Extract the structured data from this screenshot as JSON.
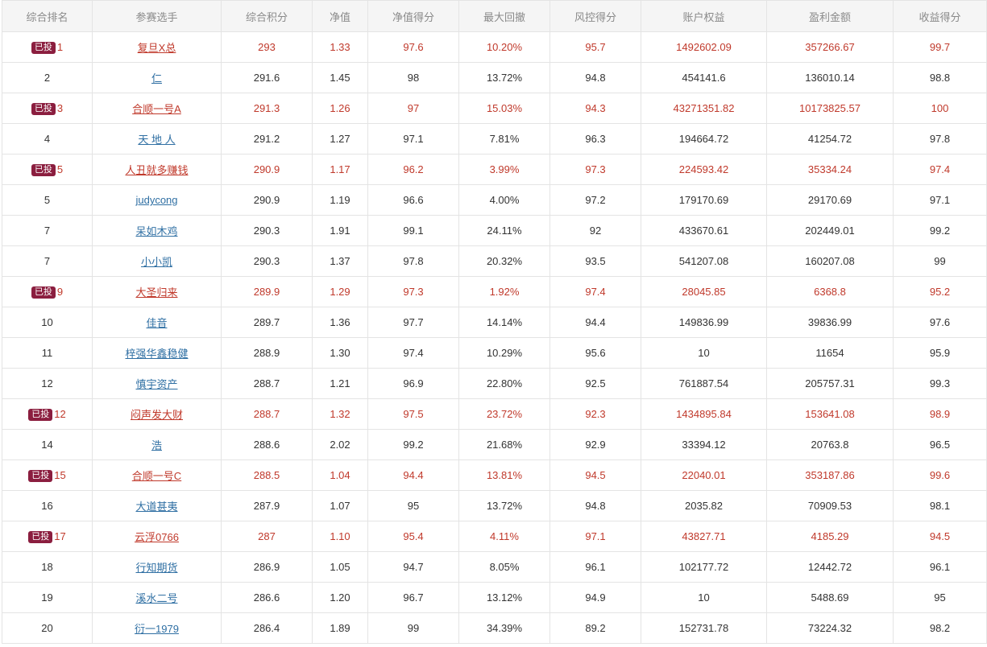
{
  "table": {
    "headers": [
      "综合排名",
      "参赛选手",
      "综合积分",
      "净值",
      "净值得分",
      "最大回撤",
      "风控得分",
      "账户权益",
      "盈利金额",
      "收益得分"
    ],
    "badge_label": "已投",
    "rows": [
      {
        "rank": "1",
        "invested": true,
        "name": "复旦X总",
        "score": "293",
        "nav": "1.33",
        "nav_score": "97.6",
        "drawdown": "10.20%",
        "risk_score": "95.7",
        "equity": "1492602.09",
        "profit": "357266.67",
        "return_score": "99.7"
      },
      {
        "rank": "2",
        "invested": false,
        "name": "仁",
        "score": "291.6",
        "nav": "1.45",
        "nav_score": "98",
        "drawdown": "13.72%",
        "risk_score": "94.8",
        "equity": "454141.6",
        "profit": "136010.14",
        "return_score": "98.8"
      },
      {
        "rank": "3",
        "invested": true,
        "name": "合顺一号A",
        "score": "291.3",
        "nav": "1.26",
        "nav_score": "97",
        "drawdown": "15.03%",
        "risk_score": "94.3",
        "equity": "43271351.82",
        "profit": "10173825.57",
        "return_score": "100"
      },
      {
        "rank": "4",
        "invested": false,
        "name": "天 地 人",
        "score": "291.2",
        "nav": "1.27",
        "nav_score": "97.1",
        "drawdown": "7.81%",
        "risk_score": "96.3",
        "equity": "194664.72",
        "profit": "41254.72",
        "return_score": "97.8"
      },
      {
        "rank": "5",
        "invested": true,
        "name": "人丑就多赚钱",
        "score": "290.9",
        "nav": "1.17",
        "nav_score": "96.2",
        "drawdown": "3.99%",
        "risk_score": "97.3",
        "equity": "224593.42",
        "profit": "35334.24",
        "return_score": "97.4"
      },
      {
        "rank": "5",
        "invested": false,
        "name": "judycong",
        "score": "290.9",
        "nav": "1.19",
        "nav_score": "96.6",
        "drawdown": "4.00%",
        "risk_score": "97.2",
        "equity": "179170.69",
        "profit": "29170.69",
        "return_score": "97.1"
      },
      {
        "rank": "7",
        "invested": false,
        "name": "呆如木鸡",
        "score": "290.3",
        "nav": "1.91",
        "nav_score": "99.1",
        "drawdown": "24.11%",
        "risk_score": "92",
        "equity": "433670.61",
        "profit": "202449.01",
        "return_score": "99.2"
      },
      {
        "rank": "7",
        "invested": false,
        "name": "小小凯",
        "score": "290.3",
        "nav": "1.37",
        "nav_score": "97.8",
        "drawdown": "20.32%",
        "risk_score": "93.5",
        "equity": "541207.08",
        "profit": "160207.08",
        "return_score": "99"
      },
      {
        "rank": "9",
        "invested": true,
        "name": "大圣归来",
        "score": "289.9",
        "nav": "1.29",
        "nav_score": "97.3",
        "drawdown": "1.92%",
        "risk_score": "97.4",
        "equity": "28045.85",
        "profit": "6368.8",
        "return_score": "95.2"
      },
      {
        "rank": "10",
        "invested": false,
        "name": "佳音",
        "score": "289.7",
        "nav": "1.36",
        "nav_score": "97.7",
        "drawdown": "14.14%",
        "risk_score": "94.4",
        "equity": "149836.99",
        "profit": "39836.99",
        "return_score": "97.6"
      },
      {
        "rank": "11",
        "invested": false,
        "name": "梓强华鑫稳健",
        "score": "288.9",
        "nav": "1.30",
        "nav_score": "97.4",
        "drawdown": "10.29%",
        "risk_score": "95.6",
        "equity": "10",
        "profit": "11654",
        "return_score": "95.9"
      },
      {
        "rank": "12",
        "invested": false,
        "name": "慎宇资产",
        "score": "288.7",
        "nav": "1.21",
        "nav_score": "96.9",
        "drawdown": "22.80%",
        "risk_score": "92.5",
        "equity": "761887.54",
        "profit": "205757.31",
        "return_score": "99.3"
      },
      {
        "rank": "12",
        "invested": true,
        "name": "闷声发大财",
        "score": "288.7",
        "nav": "1.32",
        "nav_score": "97.5",
        "drawdown": "23.72%",
        "risk_score": "92.3",
        "equity": "1434895.84",
        "profit": "153641.08",
        "return_score": "98.9"
      },
      {
        "rank": "14",
        "invested": false,
        "name": "浩",
        "score": "288.6",
        "nav": "2.02",
        "nav_score": "99.2",
        "drawdown": "21.68%",
        "risk_score": "92.9",
        "equity": "33394.12",
        "profit": "20763.8",
        "return_score": "96.5"
      },
      {
        "rank": "15",
        "invested": true,
        "name": "合顺一号C",
        "score": "288.5",
        "nav": "1.04",
        "nav_score": "94.4",
        "drawdown": "13.81%",
        "risk_score": "94.5",
        "equity": "22040.01",
        "profit": "353187.86",
        "return_score": "99.6"
      },
      {
        "rank": "16",
        "invested": false,
        "name": "大道甚夷",
        "score": "287.9",
        "nav": "1.07",
        "nav_score": "95",
        "drawdown": "13.72%",
        "risk_score": "94.8",
        "equity": "2035.82",
        "profit": "70909.53",
        "return_score": "98.1"
      },
      {
        "rank": "17",
        "invested": true,
        "name": "云浮0766",
        "score": "287",
        "nav": "1.10",
        "nav_score": "95.4",
        "drawdown": "4.11%",
        "risk_score": "97.1",
        "equity": "43827.71",
        "profit": "4185.29",
        "return_score": "94.5"
      },
      {
        "rank": "18",
        "invested": false,
        "name": "行知期货",
        "score": "286.9",
        "nav": "1.05",
        "nav_score": "94.7",
        "drawdown": "8.05%",
        "risk_score": "96.1",
        "equity": "102177.72",
        "profit": "12442.72",
        "return_score": "96.1"
      },
      {
        "rank": "19",
        "invested": false,
        "name": "溪水二号",
        "score": "286.6",
        "nav": "1.20",
        "nav_score": "96.7",
        "drawdown": "13.12%",
        "risk_score": "94.9",
        "equity": "10",
        "profit": "5488.69",
        "return_score": "95"
      },
      {
        "rank": "20",
        "invested": false,
        "name": "衍一1979",
        "score": "286.4",
        "nav": "1.89",
        "nav_score": "99",
        "drawdown": "34.39%",
        "risk_score": "89.2",
        "equity": "152731.78",
        "profit": "73224.32",
        "return_score": "98.2"
      }
    ]
  },
  "colors": {
    "invested_text": "#c0392b",
    "link": "#2f6fa3",
    "badge_bg": "#8b1e3f",
    "header_bg": "#f5f5f5",
    "border": "#e4e4e4"
  }
}
